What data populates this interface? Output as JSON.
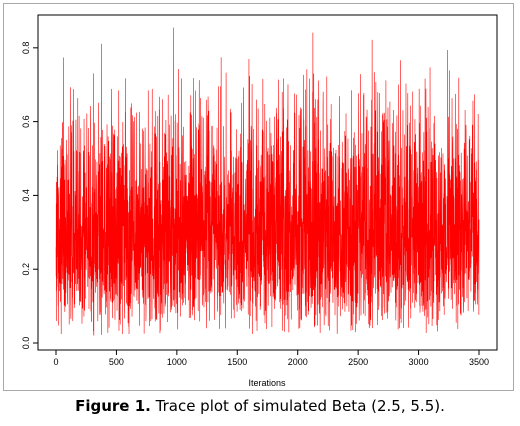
{
  "caption": {
    "label": "Figure 1.",
    "text": "Trace plot of simulated Beta (2.5, 5.5)."
  },
  "colors": {
    "trace": "#ff0000",
    "axis": "#000000",
    "frame": "#a9a9a9"
  },
  "chart_data": {
    "type": "line",
    "title": "",
    "xlabel": "Iterations",
    "ylabel": "",
    "xlim": [
      0,
      3500
    ],
    "ylim": [
      0,
      0.87
    ],
    "xticks": [
      0,
      500,
      1000,
      1500,
      2000,
      2500,
      3000,
      3500
    ],
    "yticks": [
      0.0,
      0.2,
      0.4,
      0.6,
      0.8
    ],
    "xtick_labels": [
      "0",
      "500",
      "1000",
      "1500",
      "2000",
      "2500",
      "3000",
      "3500"
    ],
    "ytick_labels": [
      "0.0",
      "0.2",
      "0.4",
      "0.6",
      "0.8"
    ],
    "grid": false,
    "series": [
      {
        "n": 3500,
        "distribution": "Beta(2.5, 5.5)",
        "mean": 0.3125,
        "min": 0.02,
        "max": 0.86
      }
    ]
  }
}
